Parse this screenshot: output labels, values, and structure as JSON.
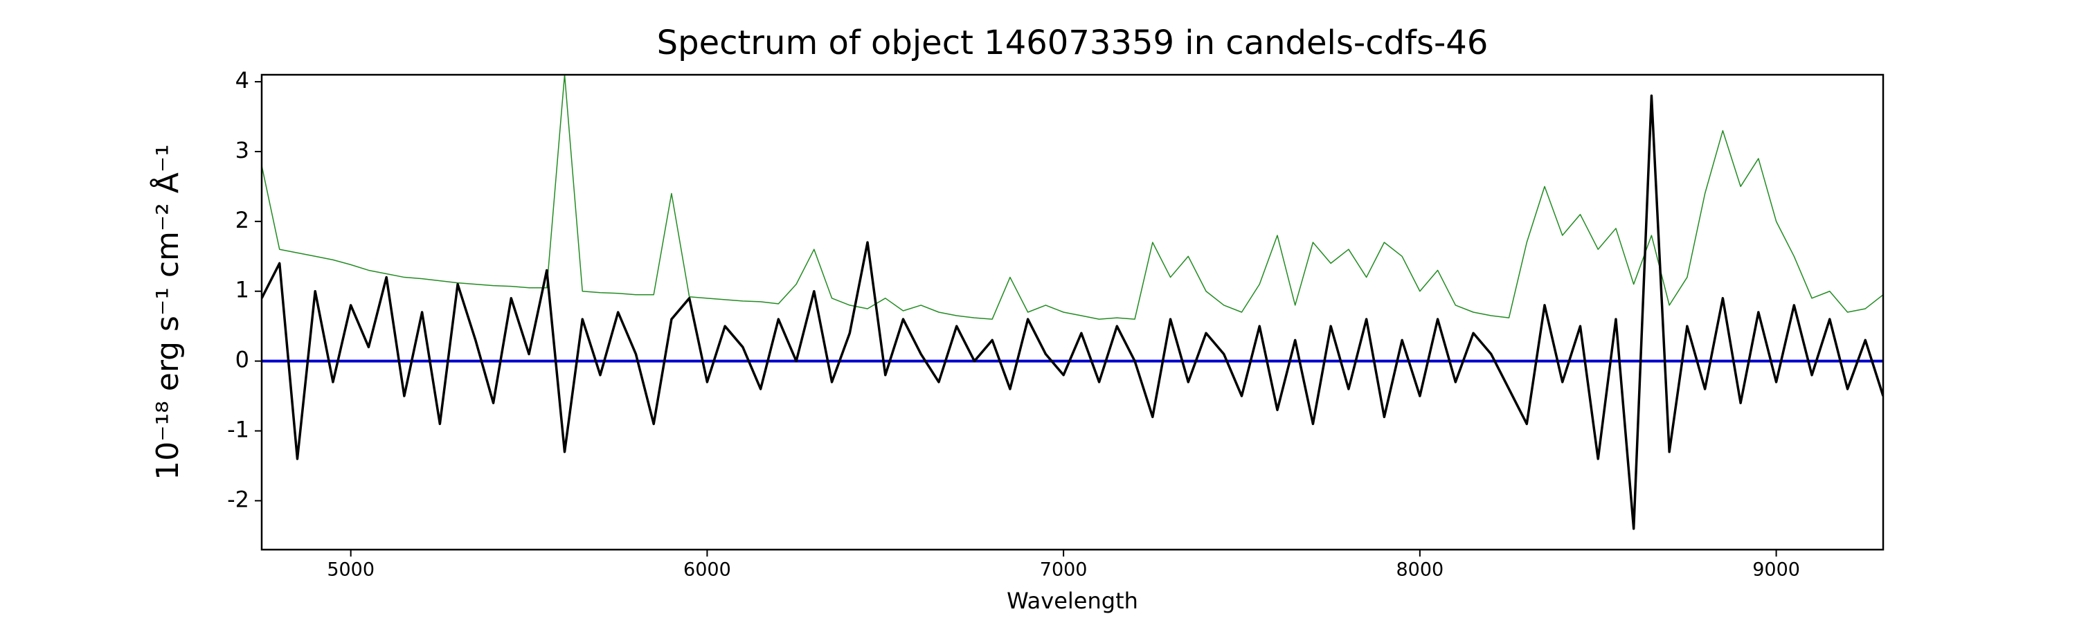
{
  "chart_data": {
    "type": "line",
    "title": "Spectrum of object 146073359 in candels-cdfs-46",
    "xlabel": "Wavelength",
    "ylabel": "10⁻¹⁸ erg s⁻¹ cm⁻² Å⁻¹",
    "xlim": [
      4750,
      9300
    ],
    "ylim": [
      -2.7,
      4.1
    ],
    "xticks": [
      5000,
      6000,
      7000,
      8000,
      9000
    ],
    "yticks": [
      -2,
      -1,
      0,
      1,
      2,
      3,
      4
    ],
    "grid": false,
    "x": [
      4750,
      4800,
      4850,
      4900,
      4950,
      5000,
      5050,
      5100,
      5150,
      5200,
      5250,
      5300,
      5350,
      5400,
      5450,
      5500,
      5550,
      5600,
      5650,
      5700,
      5750,
      5800,
      5850,
      5900,
      5950,
      6000,
      6050,
      6100,
      6150,
      6200,
      6250,
      6300,
      6350,
      6400,
      6450,
      6500,
      6550,
      6600,
      6650,
      6700,
      6750,
      6800,
      6850,
      6900,
      6950,
      7000,
      7050,
      7100,
      7150,
      7200,
      7250,
      7300,
      7350,
      7400,
      7450,
      7500,
      7550,
      7600,
      7650,
      7700,
      7750,
      7800,
      7850,
      7900,
      7950,
      8000,
      8050,
      8100,
      8150,
      8200,
      8250,
      8300,
      8350,
      8400,
      8450,
      8500,
      8550,
      8600,
      8650,
      8700,
      8750,
      8800,
      8850,
      8900,
      8950,
      9000,
      9050,
      9100,
      9150,
      9200,
      9250,
      9300
    ],
    "series": [
      {
        "color": "#228b22",
        "width": 1.5,
        "values": [
          2.8,
          1.6,
          1.55,
          1.5,
          1.45,
          1.38,
          1.3,
          1.25,
          1.2,
          1.18,
          1.15,
          1.12,
          1.1,
          1.08,
          1.07,
          1.05,
          1.05,
          4.1,
          1.0,
          0.98,
          0.97,
          0.95,
          0.95,
          2.4,
          0.92,
          0.9,
          0.88,
          0.86,
          0.85,
          0.82,
          1.1,
          1.6,
          0.9,
          0.8,
          0.75,
          0.9,
          0.72,
          0.8,
          0.7,
          0.65,
          0.62,
          0.6,
          1.2,
          0.7,
          0.8,
          0.7,
          0.65,
          0.6,
          0.62,
          0.6,
          1.7,
          1.2,
          1.5,
          1.0,
          0.8,
          0.7,
          1.1,
          1.8,
          0.8,
          1.7,
          1.4,
          1.6,
          1.2,
          1.7,
          1.5,
          1.0,
          1.3,
          0.8,
          0.7,
          0.65,
          0.62,
          1.7,
          2.5,
          1.8,
          2.1,
          1.6,
          1.9,
          1.1,
          1.8,
          0.8,
          1.2,
          2.4,
          3.3,
          2.5,
          2.9,
          2.0,
          1.5,
          0.9,
          1.0,
          0.7,
          0.75,
          0.95
        ]
      },
      {
        "color": "#0000cc",
        "width": 4,
        "values": [
          0,
          0,
          0,
          0,
          0,
          0,
          0,
          0,
          0,
          0,
          0,
          0,
          0,
          0,
          0,
          0,
          0,
          0,
          0,
          0,
          0,
          0,
          0,
          0,
          0,
          0,
          0,
          0,
          0,
          0,
          0,
          0,
          0,
          0,
          0,
          0,
          0,
          0,
          0,
          0,
          0,
          0,
          0,
          0,
          0,
          0,
          0,
          0,
          0,
          0,
          0,
          0,
          0,
          0,
          0,
          0,
          0,
          0,
          0,
          0,
          0,
          0,
          0,
          0,
          0,
          0,
          0,
          0,
          0,
          0,
          0,
          0,
          0,
          0,
          0,
          0,
          0,
          0,
          0,
          0,
          0,
          0,
          0,
          0,
          0,
          0,
          0,
          0,
          0,
          0,
          0,
          0
        ]
      },
      {
        "color": "#000000",
        "width": 3.5,
        "values": [
          0.9,
          1.4,
          -1.4,
          1.0,
          -0.3,
          0.8,
          0.2,
          1.2,
          -0.5,
          0.7,
          -0.9,
          1.1,
          0.3,
          -0.6,
          0.9,
          0.1,
          1.3,
          -1.3,
          0.6,
          -0.2,
          0.7,
          0.1,
          -0.9,
          0.6,
          0.9,
          -0.3,
          0.5,
          0.2,
          -0.4,
          0.6,
          0.0,
          1.0,
          -0.3,
          0.4,
          1.7,
          -0.2,
          0.6,
          0.1,
          -0.3,
          0.5,
          0.0,
          0.3,
          -0.4,
          0.6,
          0.1,
          -0.2,
          0.4,
          -0.3,
          0.5,
          0.0,
          -0.8,
          0.6,
          -0.3,
          0.4,
          0.1,
          -0.5,
          0.5,
          -0.7,
          0.3,
          -0.9,
          0.5,
          -0.4,
          0.6,
          -0.8,
          0.3,
          -0.5,
          0.6,
          -0.3,
          0.4,
          0.1,
          -0.4,
          -0.9,
          0.8,
          -0.3,
          0.5,
          -1.4,
          0.6,
          -2.4,
          3.8,
          -1.3,
          0.5,
          -0.4,
          0.9,
          -0.6,
          0.7,
          -0.3,
          0.8,
          -0.2,
          0.6,
          -0.4,
          0.3,
          -0.5
        ]
      }
    ]
  }
}
